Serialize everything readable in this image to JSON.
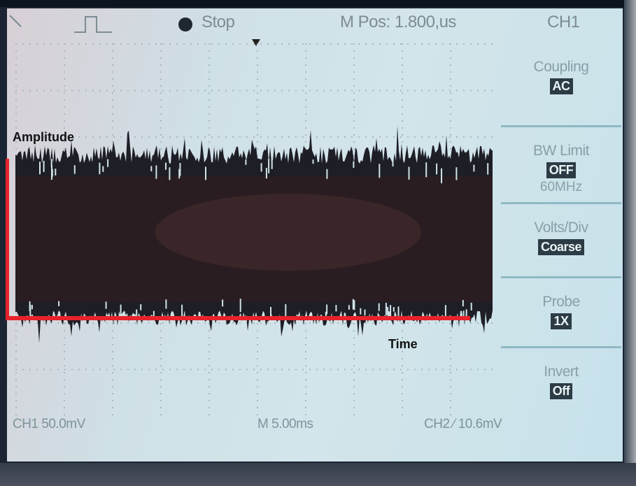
{
  "status_bar": {
    "trigger_icon": "pulse-trigger-icon",
    "run_state": "Stop",
    "run_indicator_icon": "stop-dot-icon",
    "position": "M Pos: 1.800,us",
    "channel": "CH1"
  },
  "menu": [
    {
      "title": "Coupling",
      "value": "AC",
      "sub": ""
    },
    {
      "title": "BW Limit",
      "value": "OFF",
      "sub": "60MHz"
    },
    {
      "title": "Volts/Div",
      "value": "Coarse",
      "sub": ""
    },
    {
      "title": "Probe",
      "value": "1X",
      "sub": ""
    },
    {
      "title": "Invert",
      "value": "Off",
      "sub": ""
    }
  ],
  "bottom_bar": {
    "ch1_scale": "CH1  50.0mV",
    "timebase": "M 5.00ms",
    "trigger": "CH2  ⁄  10.6mV"
  },
  "annotations": {
    "amplitude": "Amplitude",
    "time": "Time"
  },
  "colors": {
    "annotation_line": "#e8222b",
    "trace": "#1e1e26",
    "screen": "#d3e5ea"
  }
}
